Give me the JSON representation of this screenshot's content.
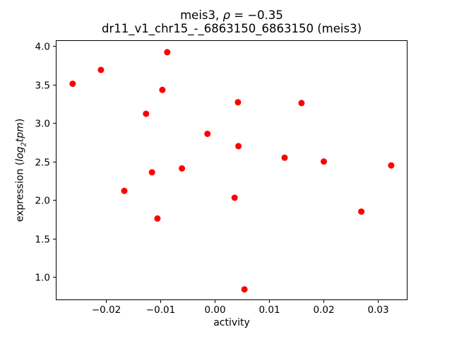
{
  "chart_data": {
    "type": "scatter",
    "title": "meis3, ρ = −0.35",
    "title_parts": {
      "prefix": "meis3, ",
      "rho": "ρ",
      "value": " = −0.35"
    },
    "subtitle": "dr11_v1_chr15_-_6863150_6863150 (meis3)",
    "xlabel": "activity",
    "ylabel": "expression (log₂tpm)",
    "ylabel_parts": {
      "prefix": "expression (",
      "italic_log": "log",
      "subscript": "2",
      "italic_tpm": "tpm",
      "suffix": ")"
    },
    "xlim": [
      -0.0292,
      0.0355
    ],
    "ylim": [
      0.7,
      4.075
    ],
    "xticks": [
      -0.02,
      -0.01,
      0.0,
      0.01,
      0.02,
      0.03
    ],
    "xtick_labels": [
      "−0.02",
      "−0.01",
      "0.00",
      "0.01",
      "0.02",
      "0.03"
    ],
    "yticks": [
      1.0,
      1.5,
      2.0,
      2.5,
      3.0,
      3.5,
      4.0
    ],
    "ytick_labels": [
      "1.0",
      "1.5",
      "2.0",
      "2.5",
      "3.0",
      "3.5",
      "4.0"
    ],
    "grid": false,
    "legend": "none",
    "marker": {
      "shape": "circle",
      "color": "#ff0000",
      "radius_px": 4.5
    },
    "points": [
      {
        "x": -0.0261,
        "y": 3.51
      },
      {
        "x": -0.0209,
        "y": 3.69
      },
      {
        "x": -0.0087,
        "y": 3.92
      },
      {
        "x": -0.0096,
        "y": 3.43
      },
      {
        "x": -0.0126,
        "y": 3.12
      },
      {
        "x": -0.0013,
        "y": 2.86
      },
      {
        "x": 0.0043,
        "y": 3.27
      },
      {
        "x": 0.016,
        "y": 3.26
      },
      {
        "x": 0.0044,
        "y": 2.7
      },
      {
        "x": 0.0129,
        "y": 2.55
      },
      {
        "x": 0.0201,
        "y": 2.5
      },
      {
        "x": 0.0325,
        "y": 2.45
      },
      {
        "x": -0.0115,
        "y": 2.36
      },
      {
        "x": -0.006,
        "y": 2.41
      },
      {
        "x": -0.0166,
        "y": 2.12
      },
      {
        "x": -0.0105,
        "y": 1.76
      },
      {
        "x": 0.0037,
        "y": 2.03
      },
      {
        "x": 0.027,
        "y": 1.85
      },
      {
        "x": 0.0055,
        "y": 0.84
      }
    ]
  }
}
